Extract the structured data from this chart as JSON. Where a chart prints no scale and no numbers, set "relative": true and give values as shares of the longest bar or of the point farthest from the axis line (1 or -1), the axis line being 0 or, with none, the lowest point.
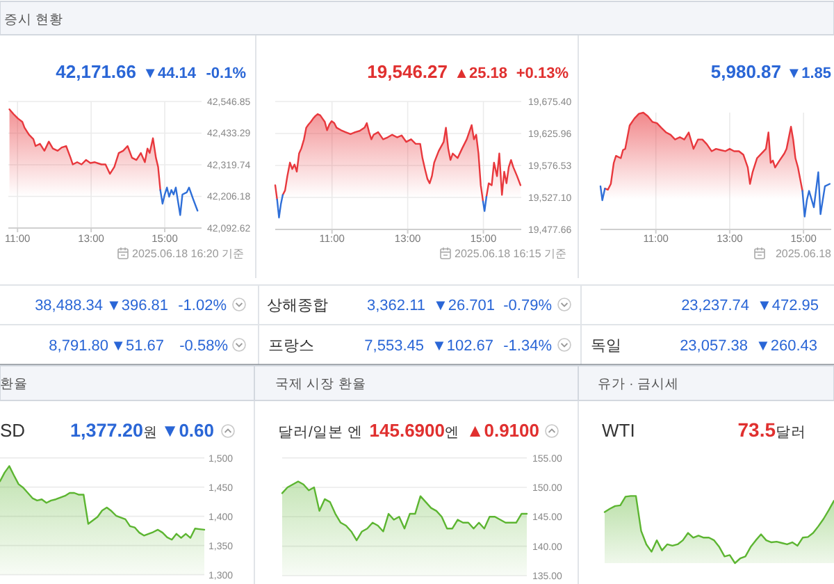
{
  "chart_data": [
    {
      "type": "other",
      "title": "증시 현황"
    },
    {
      "type": "other",
      "annotations": [
        "42,171.66",
        "▼44.14",
        "-0.1%"
      ],
      "color": "#2a66d6"
    },
    {
      "type": "area",
      "x": [
        10.78,
        10.89,
        11.01,
        11.13,
        11.19,
        11.31,
        11.43,
        11.49,
        11.61,
        11.73,
        11.85,
        11.96,
        12.09,
        12.2,
        12.32,
        12.44,
        12.5,
        12.62,
        12.74,
        12.86,
        12.98,
        13.1,
        13.28,
        13.39,
        13.51,
        13.63,
        13.75,
        13.87,
        13.99,
        14.11,
        14.23,
        14.35,
        14.46,
        14.53,
        14.59,
        14.68,
        14.76,
        14.82,
        14.88,
        14.94,
        15,
        15.06,
        15.12,
        15.18,
        15.24,
        15.3,
        15.42,
        15.48,
        15.6,
        15.66,
        15.77,
        15.89
      ],
      "xlim": [
        10.75,
        16
      ],
      "xticks": [
        {
          "value": 11,
          "label": "11:00"
        },
        {
          "value": 13,
          "label": "13:00"
        },
        {
          "value": 15,
          "label": "15:00"
        }
      ],
      "ylim": [
        42092.62,
        42546.85
      ],
      "yticks": [
        {
          "value": 42092.62,
          "label": "42,092.62"
        },
        {
          "value": 42206.18,
          "label": "42,206.18"
        },
        {
          "value": 42319.74,
          "label": "42,319.74"
        },
        {
          "value": 42433.29,
          "label": "42,433.29"
        },
        {
          "value": 42546.85,
          "label": "42,546.85"
        }
      ],
      "grid": true,
      "series": [
        {
          "color": "#e8383d",
          "values": [
            42519,
            42502,
            42486,
            42474,
            42453,
            42428,
            42412,
            42387,
            42395,
            42370,
            42403,
            42378,
            42370,
            42382,
            42387,
            42345,
            42321,
            42329,
            42321,
            42337,
            42326,
            42329,
            42321,
            42321,
            42287,
            42312,
            42362,
            42370,
            42387,
            42345,
            42337,
            42362,
            42329,
            42378,
            42362,
            42415,
            42345,
            42312,
            42229,
            null,
            null,
            null,
            null,
            null,
            null,
            null,
            null,
            null,
            null,
            null,
            null,
            null
          ]
        },
        {
          "type": "line",
          "color": "#2f6fd8",
          "values": [
            null,
            null,
            null,
            null,
            null,
            null,
            null,
            null,
            null,
            null,
            null,
            null,
            null,
            null,
            null,
            null,
            null,
            null,
            null,
            null,
            null,
            null,
            null,
            null,
            null,
            null,
            null,
            null,
            null,
            null,
            null,
            null,
            null,
            null,
            null,
            null,
            null,
            null,
            42229,
            42180,
            42213,
            42238,
            42205,
            42229,
            42213,
            42238,
            42139,
            42213,
            42221,
            42238,
            42197,
            42155
          ]
        }
      ],
      "annotations": [
        "2025.06.18 16:20 기준"
      ]
    },
    {
      "type": "other",
      "annotations": [
        "19,546.27",
        "▲25.18",
        "+0.13%"
      ],
      "color": "#e0302f"
    },
    {
      "type": "area",
      "x": [
        9.5,
        9.55,
        9.6,
        9.65,
        9.7,
        9.76,
        9.82,
        9.89,
        9.95,
        10.01,
        10.07,
        10.13,
        10.19,
        10.26,
        10.32,
        10.38,
        10.44,
        10.5,
        10.56,
        10.62,
        10.69,
        10.75,
        10.81,
        10.87,
        10.93,
        10.99,
        11.06,
        11.12,
        11.24,
        11.36,
        11.49,
        11.61,
        11.73,
        11.86,
        11.92,
        11.98,
        12.04,
        12.1,
        12.22,
        12.35,
        12.47,
        12.59,
        12.72,
        12.84,
        12.96,
        13.09,
        13.21,
        13.33,
        13.39,
        13.46,
        13.52,
        13.58,
        13.64,
        13.7,
        13.82,
        13.95,
        14.01,
        14.07,
        14.13,
        14.19,
        14.32,
        14.44,
        14.56,
        14.69,
        14.75,
        14.81,
        14.87,
        14.93,
        14.99,
        15.03,
        15.08,
        15.14,
        15.22,
        15.28,
        15.36,
        15.42,
        15.49,
        15.55,
        15.61,
        15.67,
        15.73,
        15.79,
        15.89,
        15.98
      ],
      "xlim": [
        9.5,
        16
      ],
      "xticks": [
        {
          "value": 11,
          "label": "11:00"
        },
        {
          "value": 13,
          "label": "13:00"
        },
        {
          "value": 15,
          "label": "15:00"
        }
      ],
      "ylim": [
        19477.66,
        19675.4
      ],
      "yticks": [
        {
          "value": 19477.66,
          "label": "19,477.66"
        },
        {
          "value": 19527.1,
          "label": "19,527.10"
        },
        {
          "value": 19576.53,
          "label": "19,576.53"
        },
        {
          "value": 19625.96,
          "label": "19,625.96"
        },
        {
          "value": 19675.4,
          "label": "19,675.40"
        }
      ],
      "grid": true,
      "series": [
        {
          "color": "#e8383d",
          "values": [
            19546,
            19524,
            null,
            null,
            19531,
            19538,
            19560,
            19581,
            19571,
            19578,
            19567,
            19595,
            19603,
            19617,
            19635,
            19640,
            19644,
            19649,
            19653,
            19656,
            19654,
            19649,
            19644,
            19631,
            19640,
            19645,
            19642,
            19635,
            19631,
            19628,
            19625,
            19628,
            19630,
            19635,
            19642,
            19628,
            19617,
            19624,
            19628,
            19617,
            19620,
            19624,
            19620,
            19623,
            19613,
            19617,
            19610,
            19610,
            19588,
            19570,
            19556,
            19549,
            19560,
            19581,
            19599,
            19613,
            19635,
            19603,
            19585,
            19595,
            19588,
            19603,
            19617,
            19639,
            19617,
            19624,
            19595,
            19546,
            19521,
            null,
            19528,
            19549,
            19546,
            19581,
            19560,
            19595,
            19531,
            19567,
            19549,
            19574,
            19585,
            19574,
            19560,
            19546
          ]
        },
        {
          "type": "line",
          "color": "#2f6fd8",
          "values": [
            null,
            19524,
            19496,
            19517,
            19531,
            null,
            null,
            null,
            null,
            null,
            null,
            null,
            null,
            null,
            null,
            null,
            null,
            null,
            null,
            null,
            null,
            null,
            null,
            null,
            null,
            null,
            null,
            null,
            null,
            null,
            null,
            null,
            null,
            null,
            null,
            null,
            null,
            null,
            null,
            null,
            null,
            null,
            null,
            null,
            null,
            null,
            null,
            null,
            null,
            null,
            null,
            null,
            null,
            null,
            null,
            null,
            null,
            null,
            null,
            null,
            null,
            null,
            null,
            null,
            null,
            null,
            null,
            null,
            19521,
            19506,
            19528,
            null,
            null,
            null,
            null,
            null,
            null,
            null,
            null,
            null,
            null,
            null,
            null,
            null
          ]
        }
      ],
      "annotations": [
        "2025.06.18 16:15 기준"
      ]
    },
    {
      "type": "other",
      "annotations": [
        "5,980.87",
        "▼1.85"
      ],
      "color": "#2a66d6"
    },
    {
      "type": "area",
      "relative": true,
      "x": [
        9.5,
        9.55,
        9.62,
        9.7,
        9.78,
        9.86,
        9.92,
        10.05,
        10.11,
        10.17,
        10.29,
        10.42,
        10.54,
        10.66,
        10.78,
        10.91,
        11.03,
        11.15,
        11.28,
        11.4,
        11.52,
        11.65,
        11.77,
        11.89,
        12.02,
        12.14,
        12.26,
        12.38,
        12.51,
        12.63,
        12.75,
        12.88,
        13,
        13.12,
        13.25,
        13.37,
        13.49,
        13.55,
        13.62,
        13.74,
        13.86,
        13.98,
        14.05,
        14.11,
        14.17,
        14.23,
        14.35,
        14.48,
        14.54,
        14.66,
        14.72,
        14.78,
        14.85,
        14.97,
        15.03,
        15.09,
        15.15,
        15.28,
        15.4,
        15.46,
        15.58,
        15.71
      ],
      "xlim": [
        9.5,
        15.75
      ],
      "xticks": [
        {
          "value": 11,
          "label": "11:00"
        },
        {
          "value": 13,
          "label": "13:00"
        },
        {
          "value": 15,
          "label": "15:00"
        }
      ],
      "grid": "x",
      "series": [
        {
          "color": "#e8383d",
          "values": [
            null,
            null,
            0.35,
            0.34,
            0.39,
            0.57,
            0.63,
            0.61,
            0.68,
            0.69,
            0.89,
            0.95,
            0.99,
            1,
            0.97,
            0.92,
            0.91,
            0.87,
            0.83,
            0.81,
            0.77,
            0.79,
            0.77,
            0.83,
            0.69,
            0.77,
            0.77,
            0.73,
            0.67,
            0.69,
            0.68,
            0.67,
            0.69,
            0.67,
            0.67,
            0.64,
            0.53,
            0.39,
            0.49,
            0.61,
            0.65,
            0.69,
            0.83,
            0.57,
            0.59,
            0.53,
            0.59,
            0.65,
            0.69,
            0.88,
            0.77,
            0.61,
            0.53,
            0.33,
            null,
            null,
            null,
            null,
            null,
            null,
            null,
            null
          ]
        },
        {
          "type": "line",
          "color": "#2f6fd8",
          "values": [
            0.37,
            0.25,
            0.35,
            null,
            null,
            null,
            null,
            null,
            null,
            null,
            null,
            null,
            null,
            null,
            null,
            null,
            null,
            null,
            null,
            null,
            null,
            null,
            null,
            null,
            null,
            null,
            null,
            null,
            null,
            null,
            null,
            null,
            null,
            null,
            null,
            null,
            null,
            null,
            null,
            null,
            null,
            null,
            null,
            null,
            null,
            null,
            null,
            null,
            null,
            null,
            null,
            null,
            null,
            0.33,
            0.11,
            0.25,
            0.33,
            0.19,
            0.49,
            0.13,
            0.37,
            0.39
          ]
        }
      ],
      "annotations": [
        "2025.06.18"
      ]
    },
    {
      "type": "other",
      "annotations": [
        "38,488.34",
        "▼396.81",
        "-1.02%"
      ],
      "color": "#2a66d6"
    },
    {
      "type": "other",
      "title": "상해종합",
      "annotations": [
        "3,362.11",
        "▼26.701",
        "-0.79%"
      ],
      "color": "#2a66d6"
    },
    {
      "type": "other",
      "annotations": [
        "23,237.74",
        "▼472.95"
      ],
      "color": "#2a66d6"
    },
    {
      "type": "other",
      "annotations": [
        "8,791.80",
        "▼51.67",
        "-0.58%"
      ],
      "color": "#2a66d6"
    },
    {
      "type": "other",
      "title": "프랑스",
      "annotations": [
        "7,553.45",
        "▼102.67",
        "-1.34%"
      ],
      "color": "#2a66d6"
    },
    {
      "type": "other",
      "title": "독일",
      "annotations": [
        "23,057.38",
        "▼260.43"
      ],
      "color": "#2a66d6"
    },
    {
      "type": "other",
      "title": "환율"
    },
    {
      "type": "other",
      "title": "국제 시장 환율"
    },
    {
      "type": "other",
      "title": "유가 · 금시세"
    },
    {
      "type": "other",
      "title": "SD",
      "annotations": [
        "1,377.20원",
        "▼0.60"
      ],
      "color": "#2a66d6"
    },
    {
      "type": "area",
      "categories": [
        null,
        null,
        null,
        null,
        null,
        null,
        null,
        null,
        null,
        null,
        null,
        null,
        null,
        null,
        null,
        null,
        null,
        null,
        null,
        null,
        null,
        null,
        null,
        null,
        null,
        null,
        null,
        null,
        null,
        null,
        null,
        null,
        null,
        null,
        null,
        null,
        null,
        null,
        null,
        null,
        null,
        null,
        null,
        null,
        null
      ],
      "values": [
        1460,
        1475,
        1486,
        1470,
        1455,
        1449,
        1440,
        1431,
        1427,
        1429,
        1423,
        1427,
        1429,
        1432,
        1435,
        1440,
        1440,
        1437,
        1437,
        1387,
        1393,
        1399,
        1410,
        1415,
        1409,
        1401,
        1398,
        1395,
        1383,
        1381,
        1372,
        1367,
        1370,
        1373,
        1377,
        1372,
        1364,
        1360,
        1370,
        1363,
        1370,
        1363,
        1379,
        1378,
        1377
      ],
      "color": "#5cb531",
      "ylim": [
        1300,
        1500
      ],
      "yticks": [
        {
          "value": 1300,
          "label": "1,300"
        },
        {
          "value": 1350,
          "label": "1,350"
        },
        {
          "value": 1400,
          "label": "1,400"
        },
        {
          "value": 1450,
          "label": "1,450"
        },
        {
          "value": 1500,
          "label": "1,500"
        }
      ],
      "grid": "y"
    },
    {
      "type": "other",
      "title": "달러/일본 엔",
      "annotations": [
        "145.6900엔",
        "▲0.9100"
      ],
      "color": "#e0302f"
    },
    {
      "type": "area",
      "categories": [
        null,
        null,
        null,
        null,
        null,
        null,
        null,
        null,
        null,
        null,
        null,
        null,
        null,
        null,
        null,
        null,
        null,
        null,
        null,
        null,
        null,
        null,
        null,
        null,
        null,
        null,
        null,
        null,
        null,
        null,
        null,
        null,
        null,
        null,
        null,
        null,
        null,
        null,
        null,
        null,
        null,
        null,
        null,
        null,
        null,
        null,
        null
      ],
      "values": [
        149,
        150,
        150.5,
        151,
        150.5,
        149.5,
        150,
        146,
        148,
        147.5,
        145.5,
        144,
        143.5,
        142.5,
        141,
        142.5,
        143,
        144,
        143.5,
        142.5,
        145.5,
        144.5,
        145,
        143,
        145.5,
        145.5,
        148.5,
        147.5,
        146.5,
        146,
        145,
        143,
        143,
        144.5,
        144,
        144,
        143,
        144,
        143,
        145,
        145,
        144.5,
        144,
        144,
        144,
        145.5,
        145.5
      ],
      "color": "#5cb531",
      "ylim": [
        135,
        155
      ],
      "yticks": [
        {
          "value": 135,
          "label": "135.00"
        },
        {
          "value": 140,
          "label": "140.00"
        },
        {
          "value": 145,
          "label": "145.00"
        },
        {
          "value": 150,
          "label": "150.00"
        },
        {
          "value": 155,
          "label": "155.00"
        }
      ],
      "grid": "y"
    },
    {
      "type": "other",
      "title": "WTI",
      "annotations": [
        "73.5달러"
      ],
      "color": "#e0302f"
    },
    {
      "type": "area",
      "relative": true,
      "categories": [
        null,
        null,
        null,
        null,
        null,
        null,
        null,
        null,
        null,
        null,
        null,
        null,
        null,
        null,
        null,
        null,
        null,
        null,
        null,
        null,
        null,
        null,
        null,
        null,
        null,
        null,
        null,
        null,
        null,
        null,
        null,
        null,
        null,
        null,
        null,
        null,
        null,
        null,
        null,
        null,
        null,
        null,
        null,
        null,
        null
      ],
      "values": [
        0.76,
        0.81,
        0.85,
        0.86,
        0.99,
        1,
        1,
        0.48,
        0.28,
        0.17,
        0.34,
        0.19,
        0.28,
        0.26,
        0.28,
        0.34,
        0.45,
        0.38,
        0.41,
        0.38,
        0.38,
        0.34,
        0.24,
        0.1,
        0.12,
        0,
        0.07,
        0.1,
        0.24,
        0.34,
        0.43,
        0.34,
        0.31,
        0.32,
        0.3,
        0.28,
        0.31,
        0.26,
        0.38,
        0.39,
        0.45,
        0.55,
        0.66,
        0.79,
        0.93
      ],
      "color": "#5cb531"
    }
  ]
}
